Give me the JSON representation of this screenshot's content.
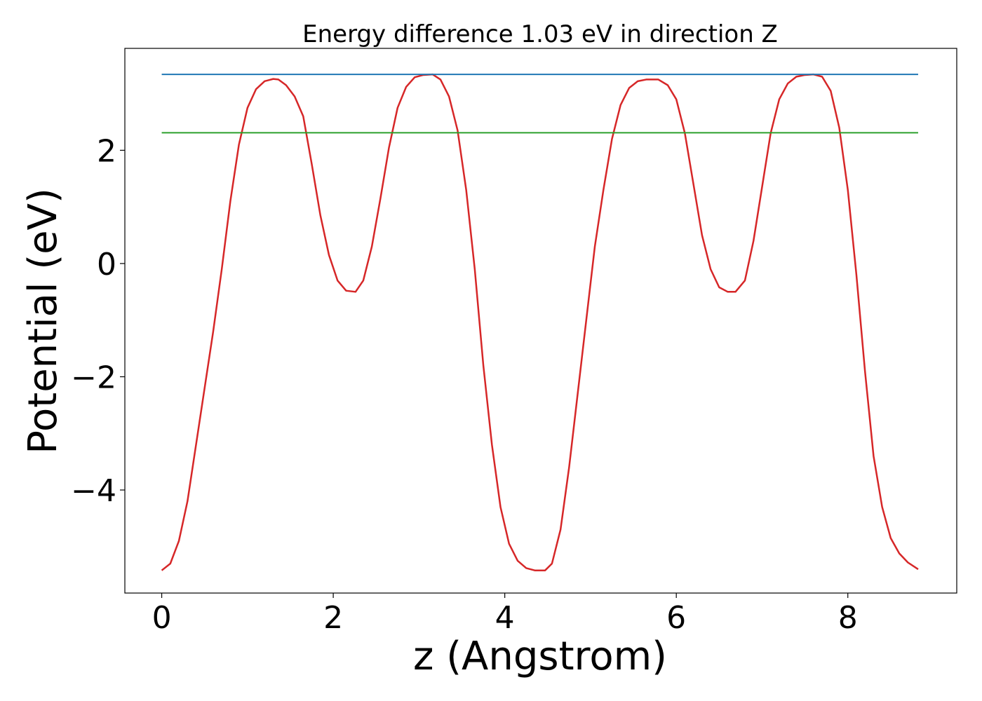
{
  "chart_data": {
    "type": "line",
    "title": "Energy difference 1.03 eV in direction Z",
    "xlabel": "z (Angstrom)",
    "ylabel": "Potential (eV)",
    "xlim": [
      -0.43,
      9.27
    ],
    "ylim": [
      -5.82,
      3.8
    ],
    "xticks": [
      0,
      2,
      4,
      6,
      8
    ],
    "xtick_labels": [
      "0",
      "2",
      "4",
      "6",
      "8"
    ],
    "yticks": [
      -4,
      -2,
      0,
      2
    ],
    "ytick_labels": [
      "−4",
      "−2",
      "0",
      "2"
    ],
    "grid": false,
    "series": [
      {
        "color": "#d62728",
        "x": [
          0.0,
          0.1,
          0.2,
          0.3,
          0.4,
          0.5,
          0.6,
          0.7,
          0.8,
          0.9,
          1.0,
          1.1,
          1.2,
          1.3,
          1.36,
          1.45,
          1.55,
          1.65,
          1.75,
          1.85,
          1.95,
          2.05,
          2.15,
          2.26,
          2.35,
          2.45,
          2.55,
          2.65,
          2.75,
          2.85,
          2.95,
          3.05,
          3.16,
          3.25,
          3.35,
          3.45,
          3.55,
          3.65,
          3.75,
          3.85,
          3.95,
          4.05,
          4.15,
          4.25,
          4.35,
          4.47,
          4.55,
          4.65,
          4.75,
          4.85,
          4.95,
          5.05,
          5.15,
          5.25,
          5.35,
          5.45,
          5.55,
          5.65,
          5.79,
          5.9,
          6.0,
          6.1,
          6.2,
          6.3,
          6.4,
          6.5,
          6.6,
          6.69,
          6.8,
          6.9,
          7.0,
          7.1,
          7.2,
          7.3,
          7.4,
          7.5,
          7.6,
          7.7,
          7.8,
          7.9,
          8.0,
          8.1,
          8.2,
          8.3,
          8.4,
          8.5,
          8.6,
          8.7,
          8.82
        ],
        "y": [
          -5.42,
          -5.3,
          -4.9,
          -4.2,
          -3.2,
          -2.2,
          -1.2,
          -0.1,
          1.1,
          2.1,
          2.75,
          3.08,
          3.22,
          3.26,
          3.25,
          3.15,
          2.95,
          2.6,
          1.75,
          0.85,
          0.15,
          -0.3,
          -0.48,
          -0.5,
          -0.3,
          0.3,
          1.15,
          2.05,
          2.75,
          3.12,
          3.29,
          3.33,
          3.34,
          3.25,
          2.95,
          2.35,
          1.3,
          -0.1,
          -1.8,
          -3.2,
          -4.3,
          -4.95,
          -5.25,
          -5.38,
          -5.42,
          -5.42,
          -5.3,
          -4.7,
          -3.6,
          -2.3,
          -1.0,
          0.3,
          1.3,
          2.2,
          2.8,
          3.1,
          3.22,
          3.25,
          3.25,
          3.15,
          2.9,
          2.3,
          1.4,
          0.5,
          -0.1,
          -0.42,
          -0.5,
          -0.5,
          -0.3,
          0.4,
          1.35,
          2.3,
          2.9,
          3.18,
          3.3,
          3.33,
          3.34,
          3.3,
          3.05,
          2.4,
          1.3,
          -0.2,
          -1.9,
          -3.4,
          -4.3,
          -4.85,
          -5.12,
          -5.28,
          -5.4
        ]
      },
      {
        "color": "#1f77b4",
        "x": [
          0.0,
          8.82
        ],
        "y": [
          3.34,
          3.34
        ]
      },
      {
        "color": "#2ca02c",
        "x": [
          0.0,
          8.82
        ],
        "y": [
          2.31,
          2.31
        ]
      }
    ]
  }
}
